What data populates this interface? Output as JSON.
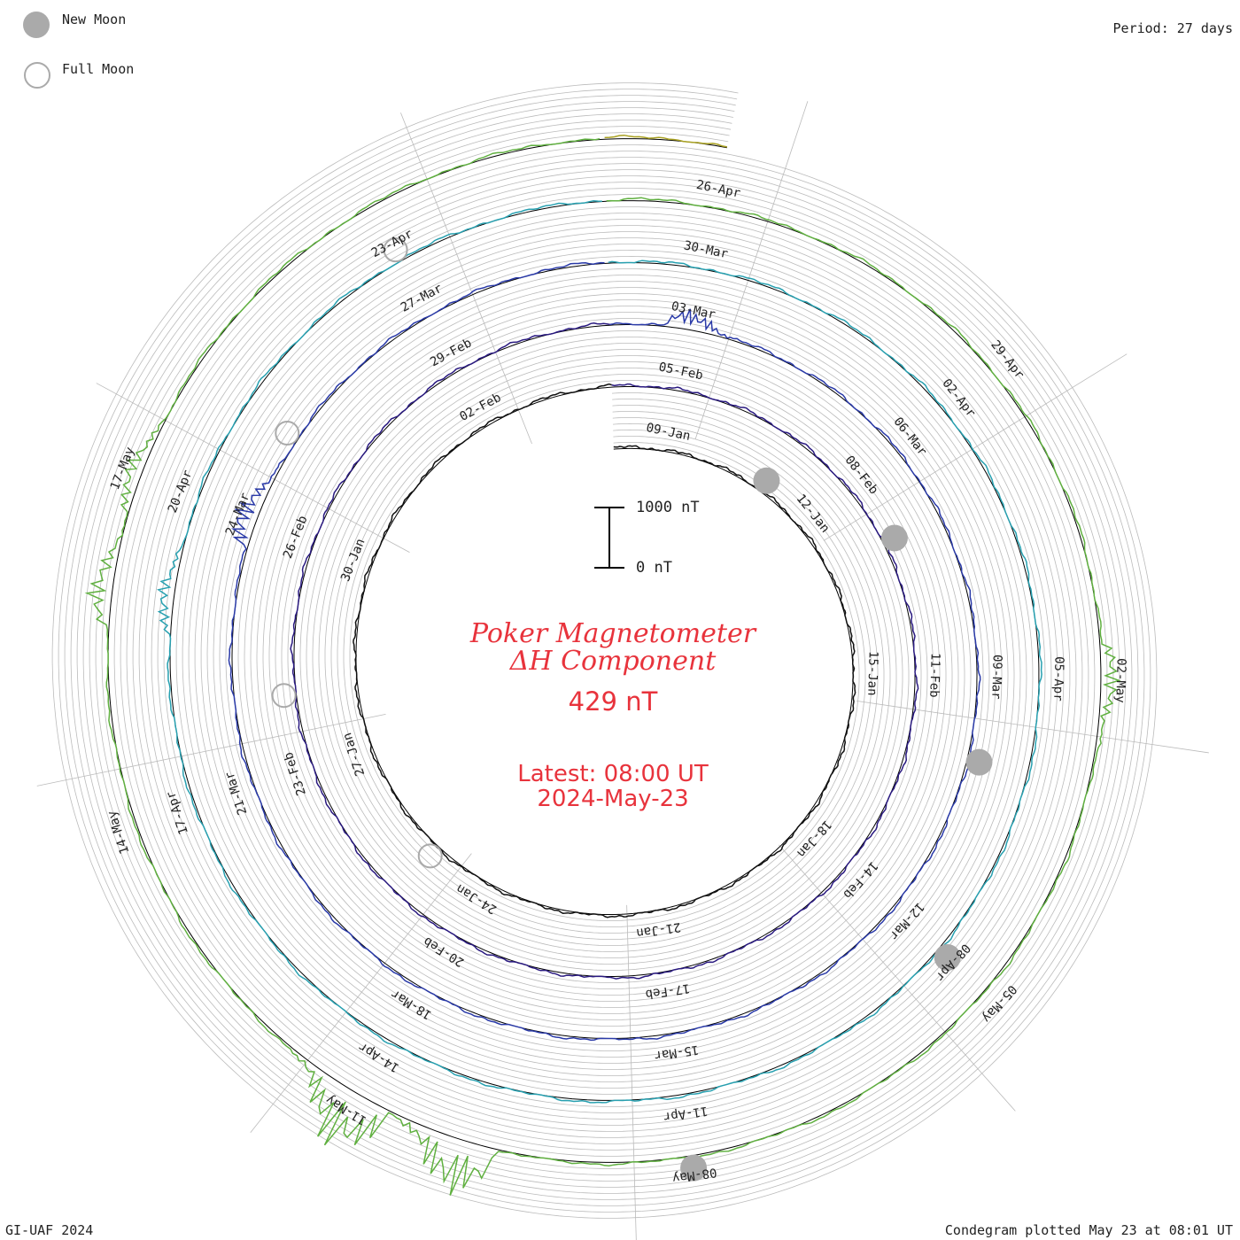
{
  "header": {
    "period_label": "Period: 27 days"
  },
  "legend": {
    "new_moon_label": "New Moon",
    "full_moon_label": "Full Moon"
  },
  "title": {
    "line1": "Poker Magnetometer",
    "line2": "ΔH Component",
    "value": "429 nT"
  },
  "latest": {
    "line1": "Latest: 08:00 UT",
    "line2": "2024-May-23"
  },
  "scale": {
    "top_label": "1000 nT",
    "bottom_label": "0 nT"
  },
  "footer": {
    "left": "GI-UAF 2024",
    "right": "Condegram plotted May 23 at 08:01 UT"
  },
  "colors": {
    "title": "#e8333c",
    "grid": "#bbbbbb",
    "baseline": "#000000",
    "new_moon": "#aaaaaa",
    "full_moon": "#aaaaaa",
    "turns": [
      "#111111",
      "#2a1a80",
      "#2a3aa8",
      "#27a0b0",
      "#60b040",
      "#a8a020",
      "#b87818",
      "#c04818",
      "#c02820"
    ]
  },
  "chart_data": {
    "type": "line",
    "subtype": "polar spiral condegram",
    "period_days": 27,
    "units": "nT",
    "scale_bar": [
      0,
      1000
    ],
    "start_date": "2024-01-08",
    "end_date": "2024-05-23",
    "date_ticks": [
      {
        "label": "09-Jan",
        "date": "2024-01-09"
      },
      {
        "label": "12-Jan",
        "date": "2024-01-12"
      },
      {
        "label": "15-Jan",
        "date": "2024-01-15"
      },
      {
        "label": "18-Jan",
        "date": "2024-01-18"
      },
      {
        "label": "21-Jan",
        "date": "2024-01-21"
      },
      {
        "label": "24-Jan",
        "date": "2024-01-24"
      },
      {
        "label": "27-Jan",
        "date": "2024-01-27"
      },
      {
        "label": "30-Jan",
        "date": "2024-01-30"
      },
      {
        "label": "02-Feb",
        "date": "2024-02-02"
      },
      {
        "label": "05-Feb",
        "date": "2024-02-05"
      },
      {
        "label": "08-Feb",
        "date": "2024-02-08"
      },
      {
        "label": "11-Feb",
        "date": "2024-02-11"
      },
      {
        "label": "14-Feb",
        "date": "2024-02-14"
      },
      {
        "label": "17-Feb",
        "date": "2024-02-17"
      },
      {
        "label": "20-Feb",
        "date": "2024-02-20"
      },
      {
        "label": "23-Feb",
        "date": "2024-02-23"
      },
      {
        "label": "26-Feb",
        "date": "2024-02-26"
      },
      {
        "label": "29-Feb",
        "date": "2024-02-29"
      },
      {
        "label": "03-Mar",
        "date": "2024-03-03"
      },
      {
        "label": "06-Mar",
        "date": "2024-03-06"
      },
      {
        "label": "09-Mar",
        "date": "2024-03-09"
      },
      {
        "label": "12-Mar",
        "date": "2024-03-12"
      },
      {
        "label": "15-Mar",
        "date": "2024-03-15"
      },
      {
        "label": "18-Mar",
        "date": "2024-03-18"
      },
      {
        "label": "21-Mar",
        "date": "2024-03-21"
      },
      {
        "label": "24-Mar",
        "date": "2024-03-24"
      },
      {
        "label": "27-Mar",
        "date": "2024-03-27"
      },
      {
        "label": "30-Mar",
        "date": "2024-03-30"
      },
      {
        "label": "02-Apr",
        "date": "2024-04-02"
      },
      {
        "label": "05-Apr",
        "date": "2024-04-05"
      },
      {
        "label": "08-Apr",
        "date": "2024-04-08"
      },
      {
        "label": "11-Apr",
        "date": "2024-04-11"
      },
      {
        "label": "14-Apr",
        "date": "2024-04-14"
      },
      {
        "label": "17-Apr",
        "date": "2024-04-17"
      },
      {
        "label": "20-Apr",
        "date": "2024-04-20"
      },
      {
        "label": "23-Apr",
        "date": "2024-04-23"
      },
      {
        "label": "26-Apr",
        "date": "2024-04-26"
      },
      {
        "label": "29-Apr",
        "date": "2024-04-29"
      },
      {
        "label": "02-May",
        "date": "2024-05-02"
      },
      {
        "label": "05-May",
        "date": "2024-05-05"
      },
      {
        "label": "08-May",
        "date": "2024-05-08"
      },
      {
        "label": "11-May",
        "date": "2024-05-11"
      },
      {
        "label": "14-May",
        "date": "2024-05-14"
      },
      {
        "label": "17-May",
        "date": "2024-05-17"
      }
    ],
    "new_moons": [
      "2024-01-11",
      "2024-02-09",
      "2024-03-10",
      "2024-04-08",
      "2024-05-08"
    ],
    "full_moons": [
      "2024-01-25",
      "2024-02-24",
      "2024-03-25",
      "2024-04-23"
    ],
    "disturbances": [
      {
        "date": "2024-03-03",
        "peak_nT": 300
      },
      {
        "date": "2024-03-24",
        "peak_nT": 400
      },
      {
        "date": "2024-04-19",
        "peak_nT": 250
      },
      {
        "date": "2024-05-02",
        "peak_nT": 300
      },
      {
        "date": "2024-05-10",
        "peak_nT": 900
      },
      {
        "date": "2024-05-11",
        "peak_nT": 1000
      },
      {
        "date": "2024-05-16",
        "peak_nT": 350
      },
      {
        "date": "2024-05-17",
        "peak_nT": 250
      }
    ]
  }
}
